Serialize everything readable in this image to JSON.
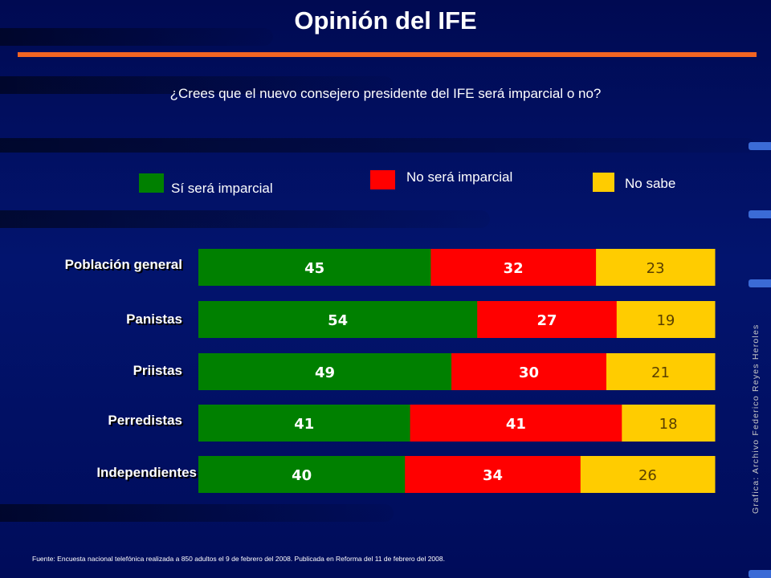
{
  "title": "Opinión del IFE",
  "question": "¿Crees que el nuevo consejero presidente del IFE será imparcial o no?",
  "legend": [
    {
      "label": "Sí será imparcial",
      "color": "#008000"
    },
    {
      "label": "No será imparcial",
      "color": "#ff0000"
    },
    {
      "label": "No sabe",
      "color": "#ffcc00"
    }
  ],
  "chart_data": {
    "type": "bar",
    "orientation": "horizontal",
    "stacked": true,
    "title": "Opinión del IFE",
    "subtitle": "¿Crees que el nuevo consejero presidente del IFE será imparcial o no?",
    "categories": [
      "Población general",
      "Panistas",
      "Priistas",
      "Perredistas",
      "Independientes"
    ],
    "series": [
      {
        "name": "Sí será imparcial",
        "color": "#008000",
        "values": [
          45,
          54,
          49,
          41,
          40
        ]
      },
      {
        "name": "No será imparcial",
        "color": "#ff0000",
        "values": [
          32,
          27,
          30,
          41,
          34
        ]
      },
      {
        "name": "No sabe",
        "color": "#ffcc00",
        "values": [
          23,
          19,
          21,
          18,
          26
        ]
      }
    ],
    "xlim": [
      0,
      100
    ],
    "grid": false,
    "legend_position": "top"
  },
  "credit": "Grafica: Archivo Federico Reyes Heroles",
  "footnote": "Fuente: Encuesta nacional telefónica realizada a 850 adultos el 9 de febrero del 2008. Publicada en Reforma del 11 de febrero del 2008."
}
